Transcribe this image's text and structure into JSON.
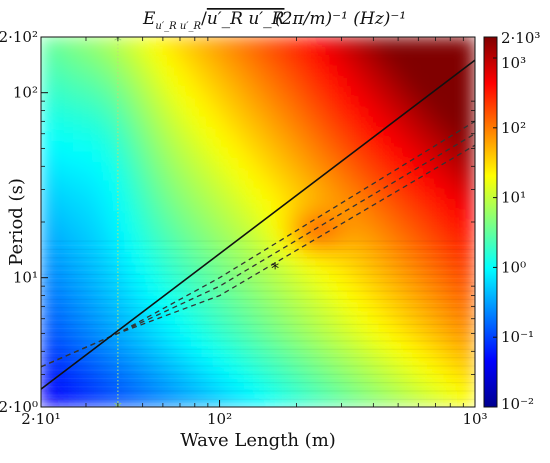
{
  "chart_data": {
    "type": "heatmap",
    "title": "E_{u'_R u'_R} / ̅u'_R u'_R   (2π/m)⁻¹ (Hz)⁻¹",
    "title_parts": {
      "lhs": "E",
      "lhs_sub": "u′_R u′_R",
      "denominator": "u′_R u′_R",
      "units": "(2π/m)⁻¹ (Hz)⁻¹"
    },
    "xlabel": "Wave Length (m)",
    "ylabel": "Period (s)",
    "x_scale": "log",
    "y_scale": "log",
    "xlim": [
      20,
      1000
    ],
    "ylim": [
      2,
      200
    ],
    "x_ticks": [
      {
        "value": 20,
        "label": "2·10¹"
      },
      {
        "value": 100,
        "label": "10²"
      },
      {
        "value": 1000,
        "label": "10³"
      }
    ],
    "y_ticks": [
      {
        "value": 2,
        "label": "2·10⁰"
      },
      {
        "value": 10,
        "label": "10¹"
      },
      {
        "value": 100,
        "label": "10²"
      },
      {
        "value": 200,
        "label": "2·10²"
      }
    ],
    "colorbar": {
      "scale": "log",
      "range": [
        0.01,
        2000
      ],
      "colormap": "jet",
      "ticks": [
        {
          "value": 2000,
          "label": "2·10³"
        },
        {
          "value": 1000,
          "label": "10³"
        },
        {
          "value": 100,
          "label": "10²"
        },
        {
          "value": 10,
          "label": "10¹"
        },
        {
          "value": 1,
          "label": "10⁰"
        },
        {
          "value": 0.1,
          "label": "10⁻¹"
        },
        {
          "value": 0.01,
          "label": "10⁻²"
        }
      ]
    },
    "solid_line": {
      "color": "#111111",
      "points": [
        [
          20,
          2.5
        ],
        [
          1000,
          150
        ]
      ]
    },
    "dashed_lines": [
      {
        "color": "#333333",
        "points": [
          [
            20,
            3.3
          ],
          [
            40,
            5.0
          ],
          [
            100,
            10.0
          ],
          [
            1000,
            70
          ]
        ]
      },
      {
        "color": "#333333",
        "points": [
          [
            20,
            3.3
          ],
          [
            40,
            5.0
          ],
          [
            100,
            9.0
          ],
          [
            1000,
            60
          ]
        ]
      },
      {
        "color": "#333333",
        "points": [
          [
            20,
            3.3
          ],
          [
            40,
            5.0
          ],
          [
            100,
            8.0
          ],
          [
            1000,
            52
          ]
        ]
      }
    ],
    "vertical_marker": {
      "x": 40,
      "color": "#b8e07a"
    },
    "end_markers": [
      {
        "x": 40,
        "y": 200,
        "color": "#8fcf6a"
      },
      {
        "x": 40,
        "y": 2,
        "color": "#8fcf6a"
      }
    ],
    "peak_marker": {
      "x": 165,
      "y": 11.5,
      "color": "#111111"
    }
  }
}
